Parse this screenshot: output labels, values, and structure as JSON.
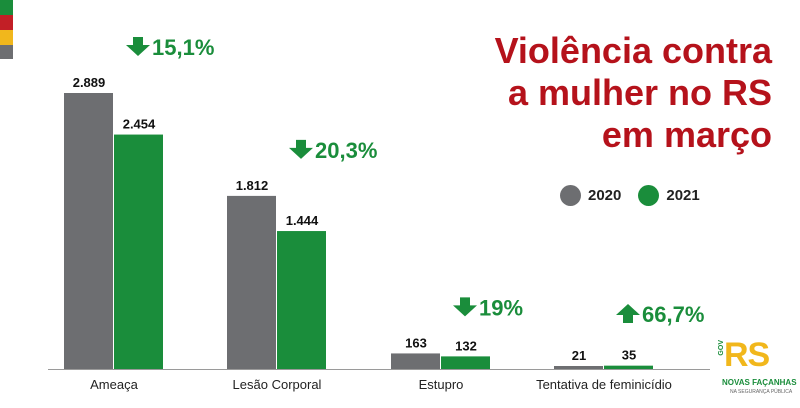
{
  "colors": {
    "series_2020": "#6d6e71",
    "series_2021": "#1a8d3b",
    "title": "#b5121b",
    "flag_red": "#c21f26",
    "flag_yellow": "#f1b71c",
    "flag_green": "#1a8d3b"
  },
  "title_lines": [
    "Violência contra",
    "a mulher no RS",
    "em março"
  ],
  "legend": [
    {
      "label": "2020",
      "color": "#6d6e71"
    },
    {
      "label": "2021",
      "color": "#1a8d3b"
    }
  ],
  "chart_data": {
    "type": "bar",
    "title": "Violência contra a mulher no RS em março",
    "categories": [
      "Ameaça",
      "Lesão Corporal",
      "Estupro",
      "Tentativa de feminicídio"
    ],
    "series": [
      {
        "name": "2020",
        "values": [
          2889,
          1812,
          163,
          21
        ],
        "labels": [
          "2.889",
          "1.812",
          "163",
          "21"
        ]
      },
      {
        "name": "2021",
        "values": [
          2454,
          1444,
          132,
          35
        ],
        "labels": [
          "2.454",
          "1.444",
          "132",
          "35"
        ]
      }
    ],
    "changes": [
      {
        "label": "15,1%",
        "direction": "down"
      },
      {
        "label": "20,3%",
        "direction": "down"
      },
      {
        "label": "19%",
        "direction": "down"
      },
      {
        "label": "66,7%",
        "direction": "up"
      }
    ],
    "ylim": [
      0,
      2889
    ],
    "grid": false,
    "legend_position": "right"
  },
  "logo": {
    "main": "RS",
    "side": "GOV",
    "tagline": "NOVAS FAÇANHAS",
    "subtitle": "NA SEGURANÇA PÚBLICA",
    "icon": "rs-gov-logo"
  }
}
